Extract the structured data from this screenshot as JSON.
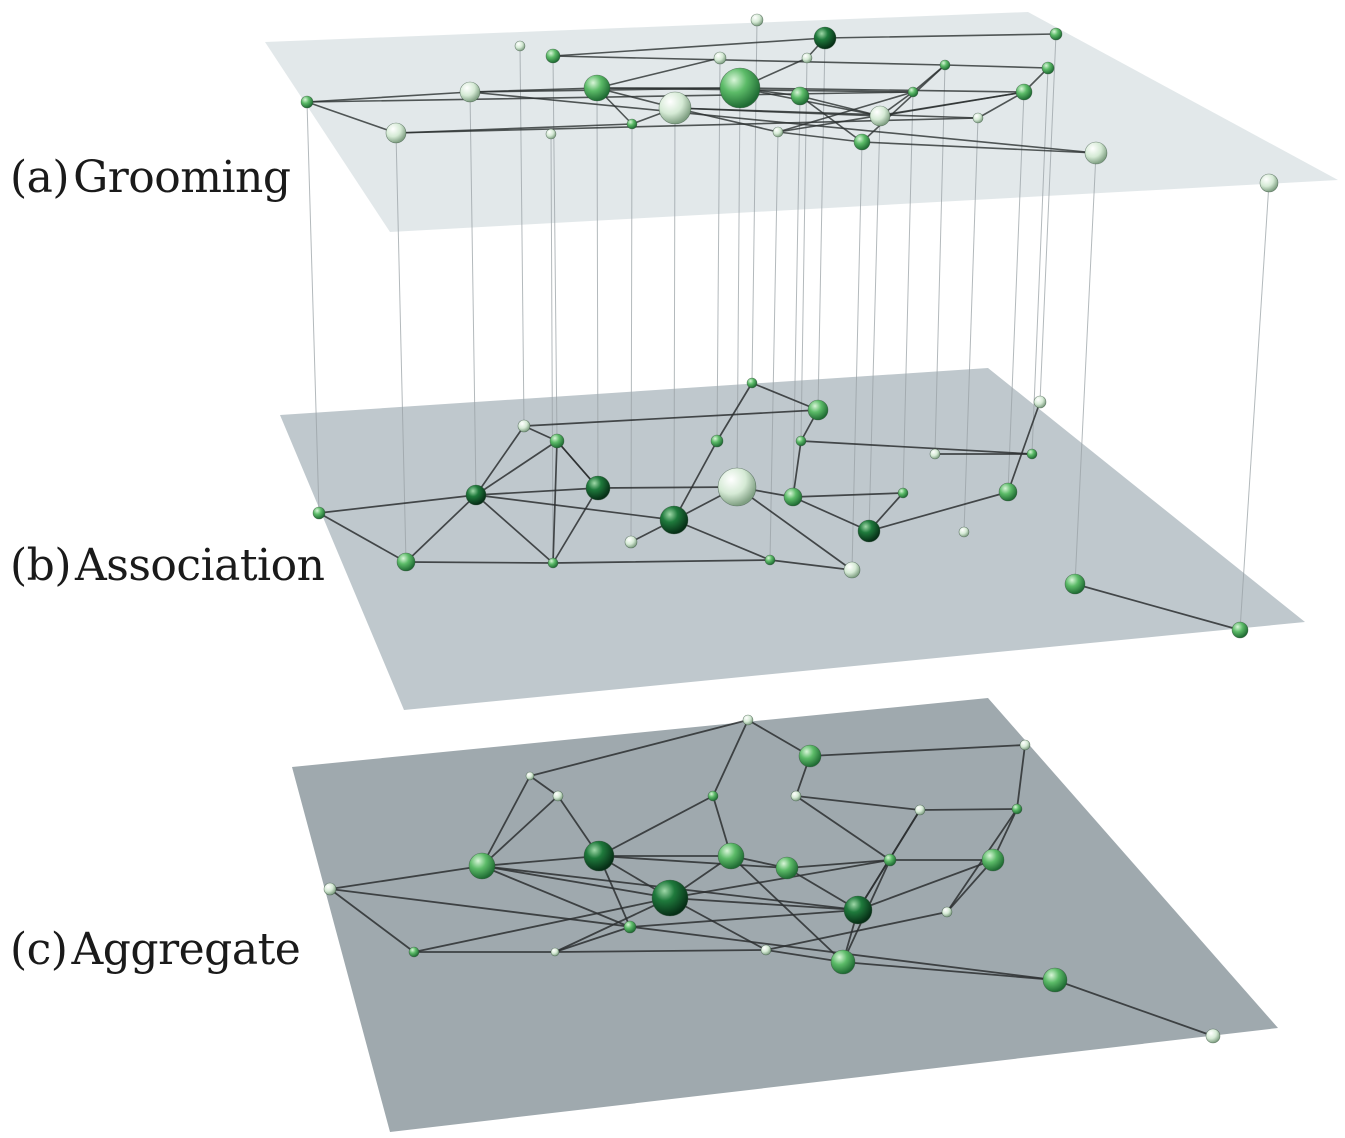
{
  "layers": [
    {
      "key": "a",
      "tag": "(a)",
      "name": "Grooming",
      "plane_color": "#dde3e7",
      "plane_opacity": 0.85
    },
    {
      "key": "b",
      "tag": "(b)",
      "name": "Association",
      "plane_color": "#bcc6cc",
      "plane_opacity": 0.9
    },
    {
      "key": "c",
      "tag": "(c)",
      "name": "Aggregate",
      "plane_color": "#9eaaaf",
      "plane_opacity": 1
    }
  ],
  "colors": {
    "edge": "#2b2f30",
    "connector": "#9aa2a6",
    "node_light": "#e6f3e6",
    "node_mid": "#5dbb6a",
    "node_dark": "#0f4a25"
  }
}
